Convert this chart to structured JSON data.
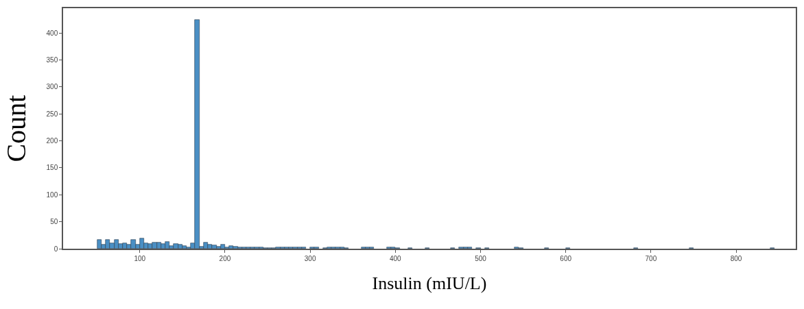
{
  "chart_data": {
    "type": "histogram",
    "xlabel": "Insulin (mIU/L)",
    "ylabel": "Count",
    "color": "#4a8fc4",
    "bins": [
      50,
      55,
      60,
      65,
      70,
      75,
      80,
      85,
      90,
      95,
      100,
      105,
      110,
      115,
      120,
      125,
      130,
      135,
      140,
      145,
      150,
      155,
      160,
      165,
      170,
      175,
      180,
      185,
      190,
      195,
      200,
      205,
      210,
      215,
      220,
      225,
      230,
      235,
      240,
      245,
      250,
      255,
      260,
      265,
      270,
      275,
      280,
      285,
      290,
      295,
      300,
      305,
      310,
      315,
      320,
      325,
      330,
      335,
      340,
      345,
      350,
      355,
      360,
      365,
      370,
      375,
      380,
      385,
      390,
      395,
      400,
      405,
      410,
      415,
      420,
      425,
      430,
      435,
      440,
      445,
      450,
      455,
      460,
      465,
      470,
      475,
      480,
      485,
      490,
      495,
      500,
      505,
      510,
      515,
      520,
      525,
      530,
      535,
      540,
      545,
      550,
      555,
      560,
      565,
      570,
      575,
      580,
      585,
      590,
      595,
      600,
      605,
      610,
      615,
      620,
      625,
      630,
      635,
      640,
      645,
      650,
      655,
      660,
      665,
      670,
      675,
      680,
      685,
      690,
      695,
      700,
      705,
      710,
      715,
      720,
      725,
      730,
      735,
      740,
      745,
      750,
      755,
      760,
      765,
      770,
      775,
      780,
      785,
      790,
      795,
      800,
      805,
      810,
      815,
      820,
      825,
      830,
      835,
      840,
      845,
      850
    ],
    "values": [
      17,
      8,
      16,
      10,
      16,
      9,
      10,
      8,
      16,
      8,
      19,
      10,
      9,
      12,
      12,
      9,
      13,
      5,
      9,
      7,
      5,
      3,
      10,
      425,
      4,
      11,
      8,
      6,
      4,
      8,
      3,
      5,
      4,
      3,
      2,
      3,
      3,
      3,
      2,
      1,
      1,
      1,
      2,
      3,
      3,
      2,
      2,
      3,
      3,
      0,
      2,
      2,
      0,
      1,
      2,
      3,
      2,
      2,
      1,
      0,
      0,
      0,
      2,
      2,
      2,
      0,
      0,
      0,
      2,
      2,
      1,
      0,
      0,
      1,
      0,
      0,
      0,
      1,
      0,
      0,
      0,
      0,
      0,
      1,
      0,
      2,
      2,
      2,
      0,
      1,
      0,
      1,
      0,
      0,
      0,
      0,
      0,
      0,
      2,
      1,
      0,
      0,
      0,
      0,
      0,
      1,
      0,
      0,
      0,
      0,
      1,
      0,
      0,
      0,
      0,
      0,
      0,
      0,
      0,
      0,
      0,
      0,
      0,
      0,
      0,
      0,
      1,
      0,
      0,
      0,
      0,
      0,
      0,
      0,
      0,
      0,
      0,
      0,
      0,
      1,
      0,
      0,
      0,
      0,
      0,
      0,
      0,
      0,
      0,
      0,
      0,
      0,
      0,
      0,
      0,
      0,
      0,
      0,
      1,
      0
    ],
    "xlim": [
      10,
      870
    ],
    "ylim": [
      0,
      446
    ],
    "xticks": [
      100,
      200,
      300,
      400,
      500,
      600,
      700,
      800
    ],
    "yticks": [
      0,
      50,
      100,
      150,
      200,
      250,
      300,
      350,
      400
    ]
  }
}
